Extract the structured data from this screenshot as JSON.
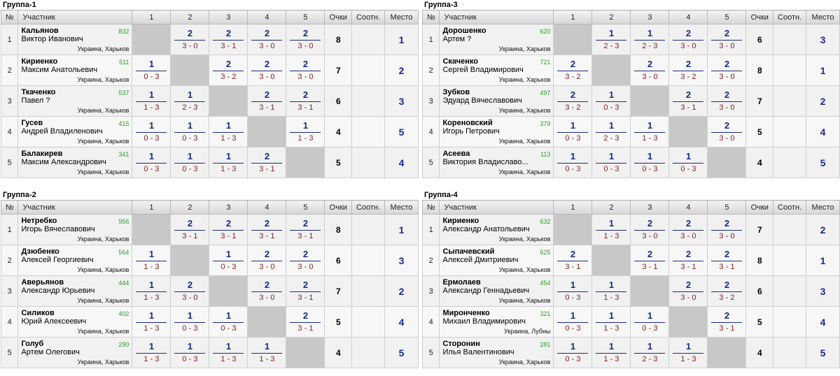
{
  "headers": {
    "num": "№",
    "name": "Участник",
    "cols": [
      "1",
      "2",
      "3",
      "4",
      "5"
    ],
    "points": "Очки",
    "ratio": "Соотн.",
    "place": "Место"
  },
  "groups": [
    {
      "title": "Группа-1",
      "players": [
        {
          "num": "1",
          "surname": "Кальянов",
          "rating": "832",
          "fullname": "Виктор Иванович",
          "city": "Украина, Харьков",
          "scores": [
            null,
            {
              "p": "2",
              "r": "3 - 0"
            },
            {
              "p": "2",
              "r": "3 - 1"
            },
            {
              "p": "2",
              "r": "3 - 0"
            },
            {
              "p": "2",
              "r": "3 - 0"
            }
          ],
          "points": "8",
          "ratio": "",
          "place": "1"
        },
        {
          "num": "2",
          "surname": "Кириенко",
          "rating": "511",
          "fullname": "Максим Анатольевич",
          "city": "Украина, Харьков",
          "scores": [
            {
              "p": "1",
              "r": "0 - 3"
            },
            null,
            {
              "p": "2",
              "r": "3 - 2"
            },
            {
              "p": "2",
              "r": "3 - 0"
            },
            {
              "p": "2",
              "r": "3 - 0"
            }
          ],
          "points": "7",
          "ratio": "",
          "place": "2"
        },
        {
          "num": "3",
          "surname": "Ткаченко",
          "rating": "537",
          "fullname": "Павел ?",
          "city": "Украина, Харьков",
          "scores": [
            {
              "p": "1",
              "r": "1 - 3"
            },
            {
              "p": "1",
              "r": "2 - 3"
            },
            null,
            {
              "p": "2",
              "r": "3 - 1"
            },
            {
              "p": "2",
              "r": "3 - 1"
            }
          ],
          "points": "6",
          "ratio": "",
          "place": "3"
        },
        {
          "num": "4",
          "surname": "Гусев",
          "rating": "415",
          "fullname": "Андрей Владиленович",
          "city": "Украина, Харьков",
          "scores": [
            {
              "p": "1",
              "r": "0 - 3"
            },
            {
              "p": "1",
              "r": "0 - 3"
            },
            {
              "p": "1",
              "r": "1 - 3"
            },
            null,
            {
              "p": "1",
              "r": "1 - 3"
            }
          ],
          "points": "4",
          "ratio": "",
          "place": "5"
        },
        {
          "num": "5",
          "surname": "Балакирев",
          "rating": "341",
          "fullname": "Максим Александрович",
          "city": "Украина, Харьков",
          "scores": [
            {
              "p": "1",
              "r": "0 - 3"
            },
            {
              "p": "1",
              "r": "0 - 3"
            },
            {
              "p": "1",
              "r": "1 - 3"
            },
            {
              "p": "2",
              "r": "3 - 1"
            },
            null
          ],
          "points": "5",
          "ratio": "",
          "place": "4"
        }
      ]
    },
    {
      "title": "Группа-3",
      "players": [
        {
          "num": "1",
          "surname": "Дорошенко",
          "rating": "620",
          "fullname": "Артем ?",
          "city": "Украина, Харьков",
          "scores": [
            null,
            {
              "p": "1",
              "r": "2 - 3"
            },
            {
              "p": "1",
              "r": "2 - 3"
            },
            {
              "p": "2",
              "r": "3 - 0"
            },
            {
              "p": "2",
              "r": "3 - 0"
            }
          ],
          "points": "6",
          "ratio": "",
          "place": "3"
        },
        {
          "num": "2",
          "surname": "Скаченко",
          "rating": "721",
          "fullname": "Сергей Владимирович",
          "city": "Украина, Харьков",
          "scores": [
            {
              "p": "2",
              "r": "3 - 2"
            },
            null,
            {
              "p": "2",
              "r": "3 - 0"
            },
            {
              "p": "2",
              "r": "3 - 2"
            },
            {
              "p": "2",
              "r": "3 - 0"
            }
          ],
          "points": "8",
          "ratio": "",
          "place": "1"
        },
        {
          "num": "3",
          "surname": "Зубков",
          "rating": "497",
          "fullname": "Эдуард Вячеславович",
          "city": "Украина, Харьков",
          "scores": [
            {
              "p": "2",
              "r": "3 - 2"
            },
            {
              "p": "1",
              "r": "0 - 3"
            },
            null,
            {
              "p": "2",
              "r": "3 - 1"
            },
            {
              "p": "2",
              "r": "3 - 0"
            }
          ],
          "points": "7",
          "ratio": "",
          "place": "2"
        },
        {
          "num": "4",
          "surname": "Кореновский",
          "rating": "379",
          "fullname": "Игорь Петрович",
          "city": "Украина, Харьков",
          "scores": [
            {
              "p": "1",
              "r": "0 - 3"
            },
            {
              "p": "1",
              "r": "2 - 3"
            },
            {
              "p": "1",
              "r": "1 - 3"
            },
            null,
            {
              "p": "2",
              "r": "3 - 0"
            }
          ],
          "points": "5",
          "ratio": "",
          "place": "4"
        },
        {
          "num": "5",
          "surname": "Асеева",
          "rating": "113",
          "fullname": "Виктория Владиславо...",
          "city": "Украина, Харьков",
          "scores": [
            {
              "p": "1",
              "r": "0 - 3"
            },
            {
              "p": "1",
              "r": "0 - 3"
            },
            {
              "p": "1",
              "r": "0 - 3"
            },
            {
              "p": "1",
              "r": "0 - 3"
            },
            null
          ],
          "points": "4",
          "ratio": "",
          "place": "5"
        }
      ]
    },
    {
      "title": "Группа-2",
      "players": [
        {
          "num": "1",
          "surname": "Нетребко",
          "rating": "956",
          "fullname": "Игорь Вячеславович",
          "city": "Украина, Харьков",
          "scores": [
            null,
            {
              "p": "2",
              "r": "3 - 1"
            },
            {
              "p": "2",
              "r": "3 - 1"
            },
            {
              "p": "2",
              "r": "3 - 1"
            },
            {
              "p": "2",
              "r": "3 - 1"
            }
          ],
          "points": "8",
          "ratio": "",
          "place": "1"
        },
        {
          "num": "2",
          "surname": "Дзюбенко",
          "rating": "564",
          "fullname": "Алексей Георгиевич",
          "city": "Украина, Харьков",
          "scores": [
            {
              "p": "1",
              "r": "1 - 3"
            },
            null,
            {
              "p": "1",
              "r": "0 - 3"
            },
            {
              "p": "2",
              "r": "3 - 0"
            },
            {
              "p": "2",
              "r": "3 - 0"
            }
          ],
          "points": "6",
          "ratio": "",
          "place": "3"
        },
        {
          "num": "3",
          "surname": "Аверьянов",
          "rating": "444",
          "fullname": "Александр Юрьевич",
          "city": "Украина, Харьков",
          "scores": [
            {
              "p": "1",
              "r": "1 - 3"
            },
            {
              "p": "2",
              "r": "3 - 0"
            },
            null,
            {
              "p": "2",
              "r": "3 - 0"
            },
            {
              "p": "2",
              "r": "3 - 1"
            }
          ],
          "points": "7",
          "ratio": "",
          "place": "2"
        },
        {
          "num": "4",
          "surname": "Силиков",
          "rating": "402",
          "fullname": "Юрий Алексеевич",
          "city": "Украина, Харьков",
          "scores": [
            {
              "p": "1",
              "r": "1 - 3"
            },
            {
              "p": "1",
              "r": "0 - 3"
            },
            {
              "p": "1",
              "r": "0 - 3"
            },
            null,
            {
              "p": "2",
              "r": "3 - 1"
            }
          ],
          "points": "5",
          "ratio": "",
          "place": "4"
        },
        {
          "num": "5",
          "surname": "Голуб",
          "rating": "290",
          "fullname": "Артем Олегович",
          "city": "Украина, Харьков",
          "scores": [
            {
              "p": "1",
              "r": "1 - 3"
            },
            {
              "p": "1",
              "r": "0 - 3"
            },
            {
              "p": "1",
              "r": "1 - 3"
            },
            {
              "p": "1",
              "r": "1 - 3"
            },
            null
          ],
          "points": "4",
          "ratio": "",
          "place": "5"
        }
      ]
    },
    {
      "title": "Группа-4",
      "players": [
        {
          "num": "1",
          "surname": "Кириенко",
          "rating": "632",
          "fullname": "Александр Анатольевич",
          "city": "Украина, Харьков",
          "scores": [
            null,
            {
              "p": "1",
              "r": "1 - 3"
            },
            {
              "p": "2",
              "r": "3 - 0"
            },
            {
              "p": "2",
              "r": "3 - 0"
            },
            {
              "p": "2",
              "r": "3 - 0"
            }
          ],
          "points": "7",
          "ratio": "",
          "place": "2"
        },
        {
          "num": "2",
          "surname": "Сыпачевский",
          "rating": "625",
          "fullname": "Алексей Дмитриевич",
          "city": "Украина, Харьков",
          "scores": [
            {
              "p": "2",
              "r": "3 - 1"
            },
            null,
            {
              "p": "2",
              "r": "3 - 1"
            },
            {
              "p": "2",
              "r": "3 - 1"
            },
            {
              "p": "2",
              "r": "3 - 1"
            }
          ],
          "points": "8",
          "ratio": "",
          "place": "1"
        },
        {
          "num": "3",
          "surname": "Ермолаев",
          "rating": "454",
          "fullname": "Александр Геннадьевич",
          "city": "Украина, Харьков",
          "scores": [
            {
              "p": "1",
              "r": "0 - 3"
            },
            {
              "p": "1",
              "r": "1 - 3"
            },
            null,
            {
              "p": "2",
              "r": "3 - 0"
            },
            {
              "p": "2",
              "r": "3 - 2"
            }
          ],
          "points": "6",
          "ratio": "",
          "place": "3"
        },
        {
          "num": "4",
          "surname": "Миронченко",
          "rating": "321",
          "fullname": "Михаил Владимирович",
          "city": "Украина, Лубны",
          "scores": [
            {
              "p": "1",
              "r": "0 - 3"
            },
            {
              "p": "1",
              "r": "1 - 3"
            },
            {
              "p": "1",
              "r": "0 - 3"
            },
            null,
            {
              "p": "2",
              "r": "3 - 1"
            }
          ],
          "points": "5",
          "ratio": "",
          "place": "4"
        },
        {
          "num": "5",
          "surname": "Сторонин",
          "rating": "281",
          "fullname": "Илья Валентинович",
          "city": "Украина, Харьков",
          "scores": [
            {
              "p": "1",
              "r": "0 - 3"
            },
            {
              "p": "1",
              "r": "1 - 3"
            },
            {
              "p": "1",
              "r": "2 - 3"
            },
            {
              "p": "1",
              "r": "1 - 3"
            },
            null
          ],
          "points": "4",
          "ratio": "",
          "place": "5"
        }
      ]
    }
  ]
}
